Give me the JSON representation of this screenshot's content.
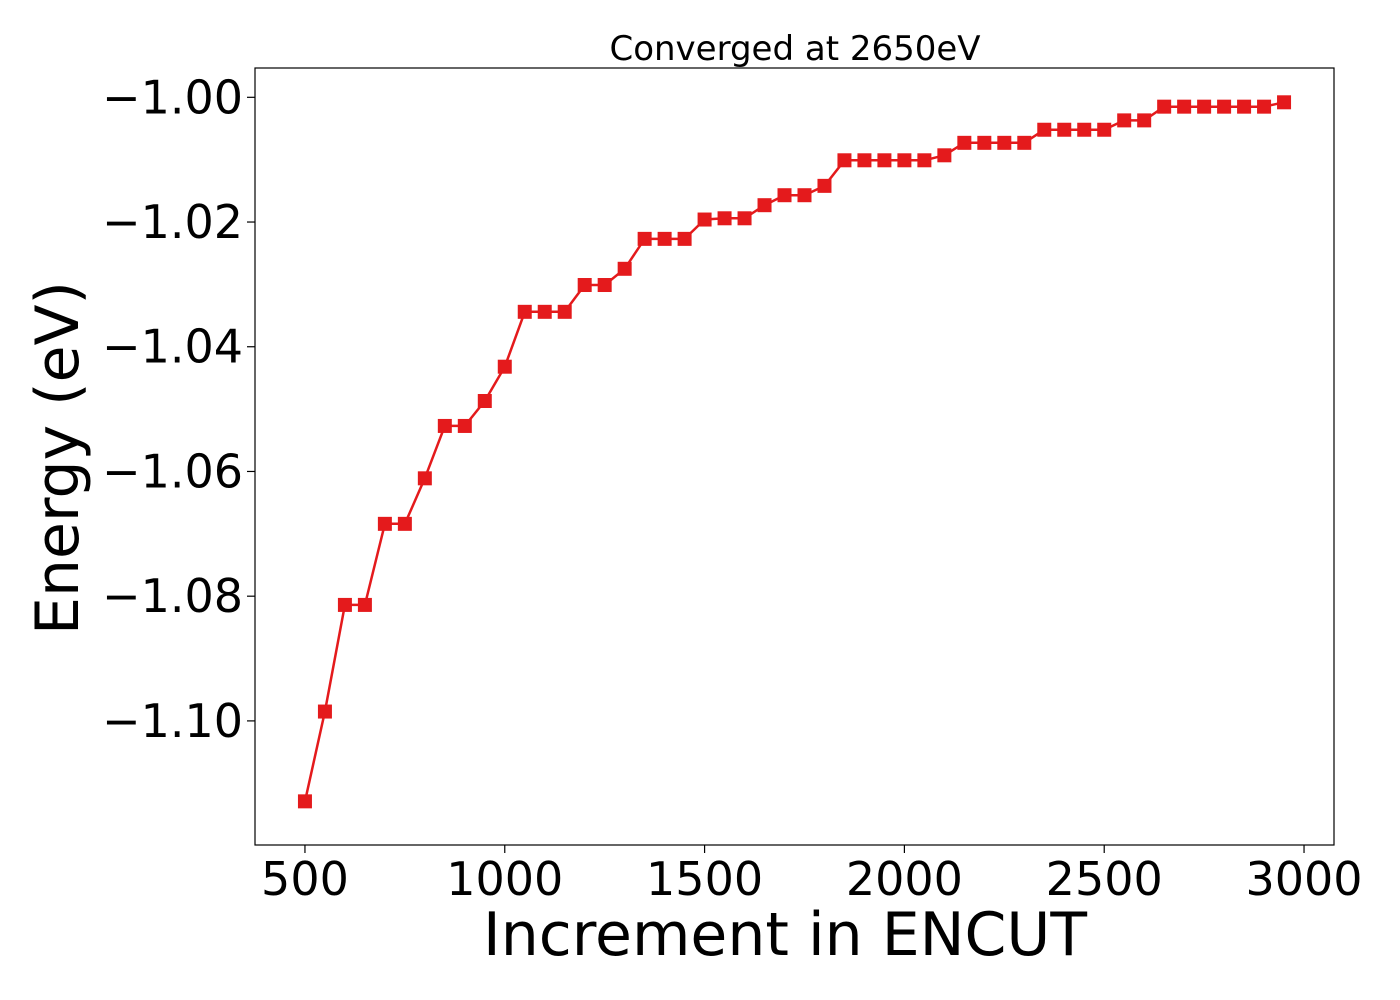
{
  "chart_data": {
    "type": "line",
    "title": "Converged at 2650eV",
    "xlabel": "Increment in ENCUT",
    "ylabel": "Energy (eV)",
    "xlim": [
      375,
      3075
    ],
    "ylim": [
      -1.1199,
      -0.9953
    ],
    "x_ticks": [
      500,
      1000,
      1500,
      2000,
      2500,
      3000
    ],
    "x_tick_labels": [
      "500",
      "1000",
      "1500",
      "2000",
      "2500",
      "3000"
    ],
    "y_ticks": [
      -1.1,
      -1.08,
      -1.06,
      -1.04,
      -1.02,
      -1.0
    ],
    "y_tick_labels": [
      "−1.10",
      "−1.08",
      "−1.06",
      "−1.04",
      "−1.02",
      "−1.00"
    ],
    "grid": false,
    "series": [
      {
        "color": "#e41a1c",
        "marker": "square",
        "x": [
          500,
          550,
          600,
          650,
          700,
          750,
          800,
          850,
          900,
          950,
          1000,
          1050,
          1100,
          1150,
          1200,
          1250,
          1300,
          1350,
          1400,
          1450,
          1500,
          1550,
          1600,
          1650,
          1700,
          1750,
          1800,
          1850,
          1900,
          1950,
          2000,
          2050,
          2100,
          2150,
          2200,
          2250,
          2300,
          2350,
          2400,
          2450,
          2500,
          2550,
          2600,
          2650,
          2700,
          2750,
          2800,
          2850,
          2900,
          2950
        ],
        "y": [
          -1.1129,
          -1.0985,
          -1.0814,
          -1.0814,
          -1.0684,
          -1.0684,
          -1.0611,
          -1.0527,
          -1.0527,
          -1.0487,
          -1.0432,
          -1.0344,
          -1.0344,
          -1.0344,
          -1.0301,
          -1.0301,
          -1.0275,
          -1.0227,
          -1.0227,
          -1.0227,
          -1.0196,
          -1.0194,
          -1.0194,
          -1.0173,
          -1.0157,
          -1.0157,
          -1.0142,
          -1.0101,
          -1.0101,
          -1.0101,
          -1.0101,
          -1.0101,
          -1.0093,
          -1.0073,
          -1.0073,
          -1.0073,
          -1.0073,
          -1.0052,
          -1.0052,
          -1.0052,
          -1.0052,
          -1.0037,
          -1.0037,
          -1.0015,
          -1.0015,
          -1.0015,
          -1.0015,
          -1.0015,
          -1.0015,
          -1.0008
        ]
      }
    ]
  }
}
